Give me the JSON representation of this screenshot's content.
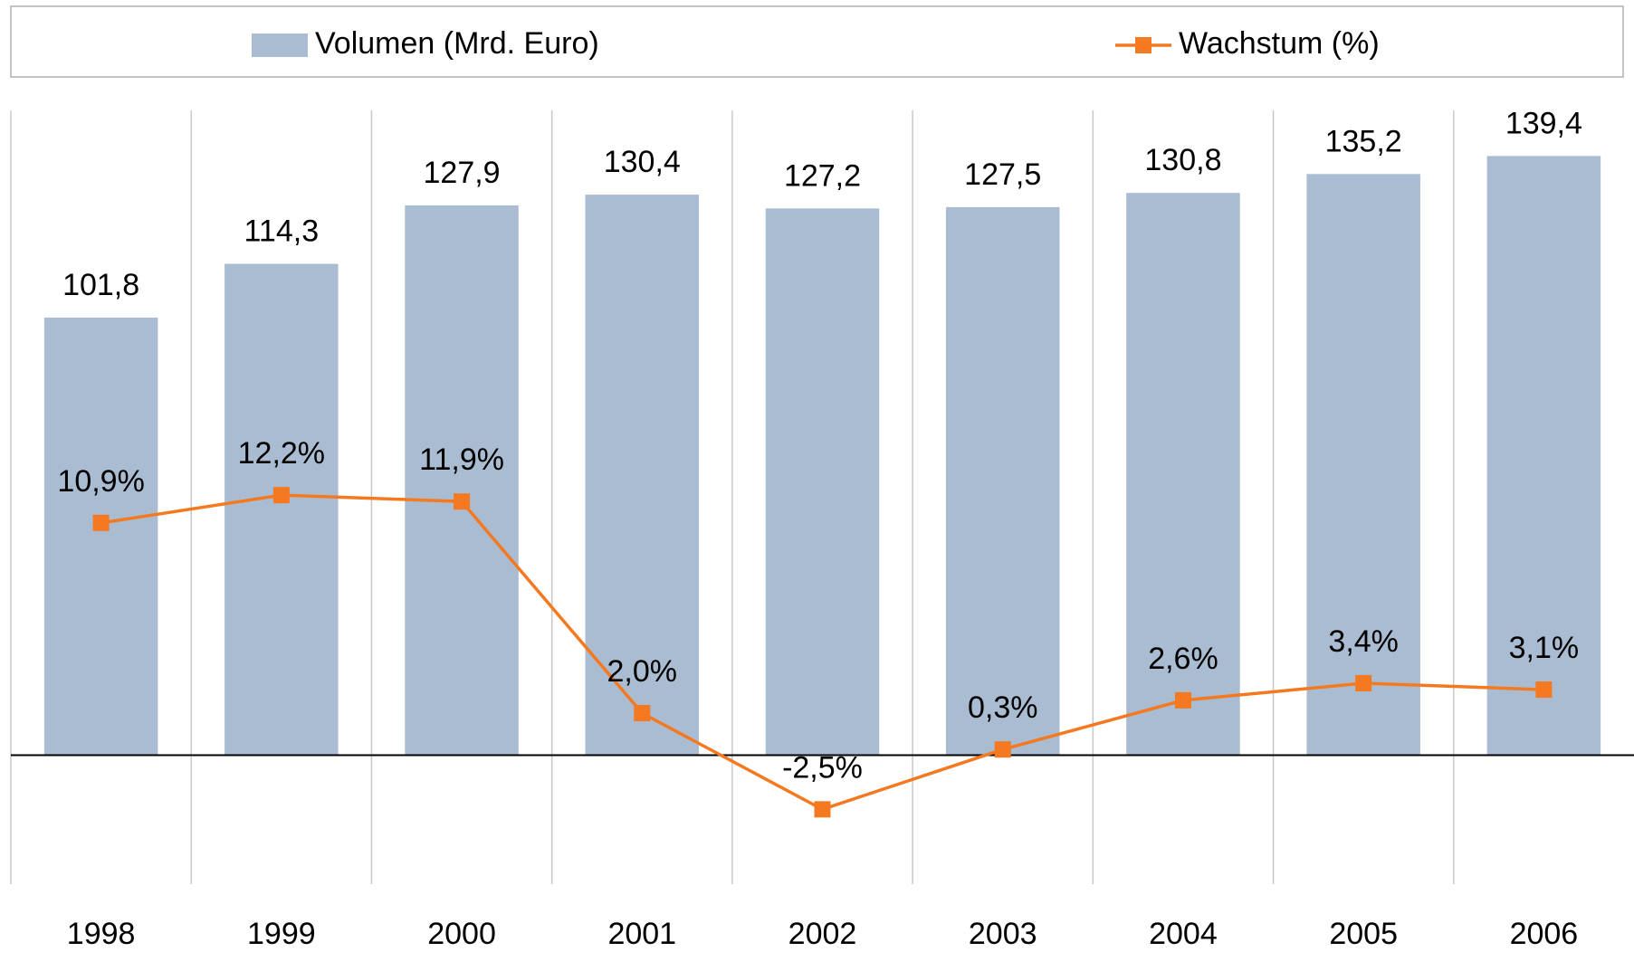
{
  "chart_data": {
    "type": "bar_line",
    "categories": [
      "1998",
      "1999",
      "2000",
      "2001",
      "2002",
      "2003",
      "2004",
      "2005",
      "2006"
    ],
    "series": [
      {
        "name": "Volumen (Mrd. Euro)",
        "type": "bar",
        "color": "#a9bcd1",
        "values": [
          101.8,
          114.3,
          127.9,
          130.4,
          127.2,
          127.5,
          130.8,
          135.2,
          139.4
        ],
        "value_labels": [
          "101,8",
          "114,3",
          "127,9",
          "130,4",
          "127,2",
          "127,5",
          "130,8",
          "135,2",
          "139,4"
        ]
      },
      {
        "name": "Wachstum (%)",
        "type": "line",
        "axis": "y2",
        "color": "#f47920",
        "values": [
          10.9,
          12.2,
          11.9,
          2.0,
          -2.5,
          0.3,
          2.6,
          3.4,
          3.1
        ],
        "value_labels": [
          "10,9%",
          "12,2%",
          "11,9%",
          "2,0%",
          "-2,5%",
          "0,3%",
          "2,6%",
          "3,4%",
          "3,1%"
        ]
      }
    ],
    "ylim": [
      -30,
      150
    ],
    "y2lim": [
      -6,
      30.2
    ],
    "legend": "top"
  }
}
